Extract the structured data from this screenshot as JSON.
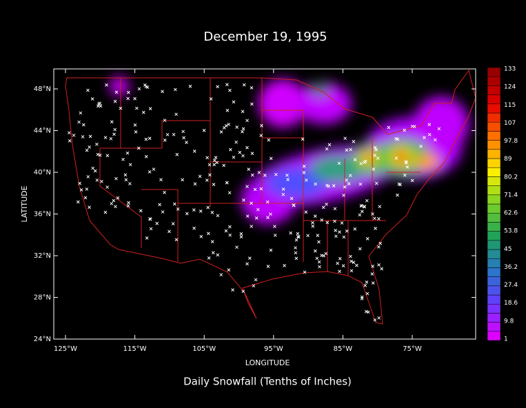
{
  "title": "December 19, 1995",
  "caption": "Daily Snowfall (Tenths of Inches)",
  "x_label": "LONGITUDE",
  "y_label": "LATITUDE",
  "lat_ticks": [
    "48°N",
    "44°N",
    "40°N",
    "36°N",
    "32°N",
    "28°N",
    "24°N"
  ],
  "lon_ticks": [
    "125°W",
    "115°W",
    "105°W",
    "95°W",
    "85°W",
    "75°W"
  ],
  "colorbar": {
    "labels": [
      "133",
      "124",
      "115",
      "107",
      "97.8",
      "89",
      "80.2",
      "71.4",
      "62.6",
      "53.8",
      "45",
      "36.2",
      "27.4",
      "18.6",
      "9.8",
      "1"
    ]
  }
}
